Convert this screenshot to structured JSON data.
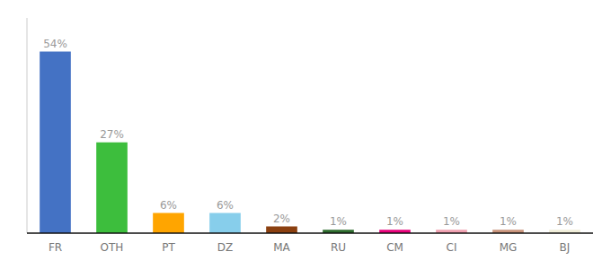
{
  "chart_data": {
    "type": "bar",
    "categories": [
      "FR",
      "OTH",
      "PT",
      "DZ",
      "MA",
      "RU",
      "CM",
      "CI",
      "MG",
      "BJ"
    ],
    "values": [
      54,
      27,
      6,
      6,
      2,
      1,
      1,
      1,
      1,
      1
    ],
    "value_labels": [
      "54%",
      "27%",
      "6%",
      "6%",
      "2%",
      "1%",
      "1%",
      "1%",
      "1%",
      "1%"
    ],
    "colors": [
      "#4472C4",
      "#3DBE3D",
      "#FFA500",
      "#87CEEB",
      "#8B4010",
      "#2D6B2D",
      "#E8007A",
      "#F0A0B0",
      "#C8937A",
      "#F0EDD8"
    ],
    "ylim": [
      0,
      64
    ],
    "data_labels": true,
    "tick_labels": "x",
    "grid": false
  }
}
